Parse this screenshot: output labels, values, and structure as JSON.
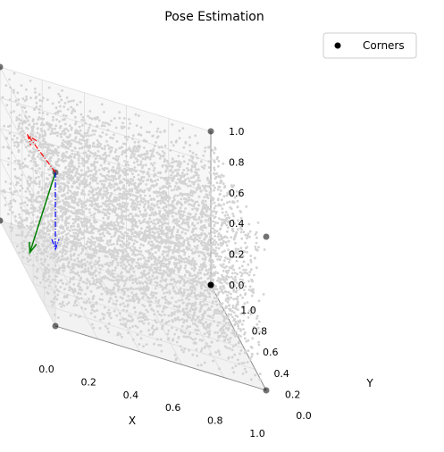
{
  "chart_data": {
    "type": "scatter",
    "projection": "3d",
    "title": "Pose Estimation",
    "xlabel": "X",
    "ylabel": "Y",
    "zlabel": "",
    "xlim": [
      0,
      1
    ],
    "ylim": [
      0,
      1
    ],
    "zlim": [
      0,
      1
    ],
    "x_ticks": [
      "0.0",
      "0.2",
      "0.4",
      "0.6",
      "0.8",
      "1.0"
    ],
    "y_ticks": [
      "0.0",
      "0.2",
      "0.4",
      "0.6",
      "0.8",
      "1.0"
    ],
    "z_ticks": [
      "0.0",
      "0.2",
      "0.4",
      "0.6",
      "0.8",
      "1.0"
    ],
    "grid": true,
    "legend": {
      "placement": "top-right",
      "entries": [
        "Corners"
      ]
    },
    "series": [
      {
        "name": "",
        "kind": "point-cloud",
        "distribution": "uniform in unit cube",
        "approx_count": 5000,
        "color": "#d3d3d3"
      },
      {
        "name": "Corners",
        "color": "#000000",
        "points": [
          {
            "x": 0,
            "y": 0,
            "z": 0
          },
          {
            "x": 1,
            "y": 0,
            "z": 0
          },
          {
            "x": 0,
            "y": 1,
            "z": 0
          },
          {
            "x": 0,
            "y": 0,
            "z": 1
          },
          {
            "x": 1,
            "y": 1,
            "z": 0
          },
          {
            "x": 1,
            "y": 0,
            "z": 1
          },
          {
            "x": 0,
            "y": 1,
            "z": 1
          },
          {
            "x": 1,
            "y": 1,
            "z": 1
          }
        ]
      }
    ],
    "pose_axes": {
      "origin": {
        "x": 0,
        "y": 0,
        "z": 1
      },
      "vectors": [
        {
          "axis": "x",
          "color": "#ff0000",
          "style": "dashdot",
          "dx": 0,
          "dy": 0.5,
          "dz": -0.1
        },
        {
          "axis": "y",
          "color": "#008000",
          "style": "solid",
          "dx": -0.2,
          "dy": -0.3,
          "dz": -0.4
        },
        {
          "axis": "z",
          "color": "#0000ff",
          "style": "dashdot",
          "dx": 0,
          "dy": 0,
          "dz": -0.5
        }
      ]
    }
  }
}
